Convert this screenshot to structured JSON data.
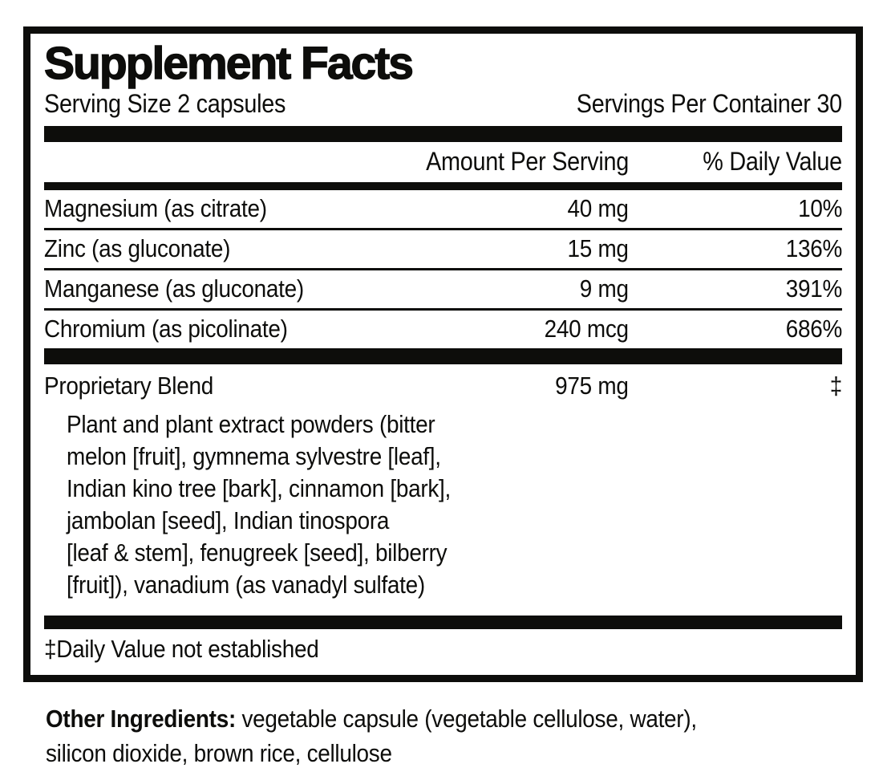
{
  "label": {
    "title": "Supplement Facts",
    "serving_size": "Serving Size 2 capsules",
    "servings_per_container": "Servings Per Container 30",
    "columns": {
      "amount": "Amount Per Serving",
      "daily_value": "% Daily Value"
    },
    "nutrients": [
      {
        "name": "Magnesium (as citrate)",
        "amount": "40 mg",
        "daily_value": "10%"
      },
      {
        "name": "Zinc (as gluconate)",
        "amount": "15 mg",
        "daily_value": "136%"
      },
      {
        "name": "Manganese (as gluconate)",
        "amount": "9 mg",
        "daily_value": "391%"
      },
      {
        "name": "Chromium (as picolinate)",
        "amount": "240 mcg",
        "daily_value": "686%"
      }
    ],
    "blend": {
      "name": "Proprietary Blend",
      "amount": "975 mg",
      "daily_value": "‡",
      "description_lines": [
        "Plant and plant extract powders (bitter",
        "melon [fruit], gymnema sylvestre [leaf],",
        "Indian kino tree [bark], cinnamon [bark],",
        "jambolan [seed], Indian tinospora",
        "[leaf & stem], fenugreek [seed], bilberry",
        "[fruit]), vanadium (as vanadyl sulfate)"
      ]
    },
    "footnote": "‡Daily Value not established"
  },
  "other_ingredients": {
    "label": "Other Ingredients:",
    "line1": "vegetable capsule (vegetable cellulose, water),",
    "line2": "silicon dioxide, brown rice, cellulose"
  },
  "colors": {
    "ink": "#0d0d0b",
    "background": "#ffffff"
  }
}
